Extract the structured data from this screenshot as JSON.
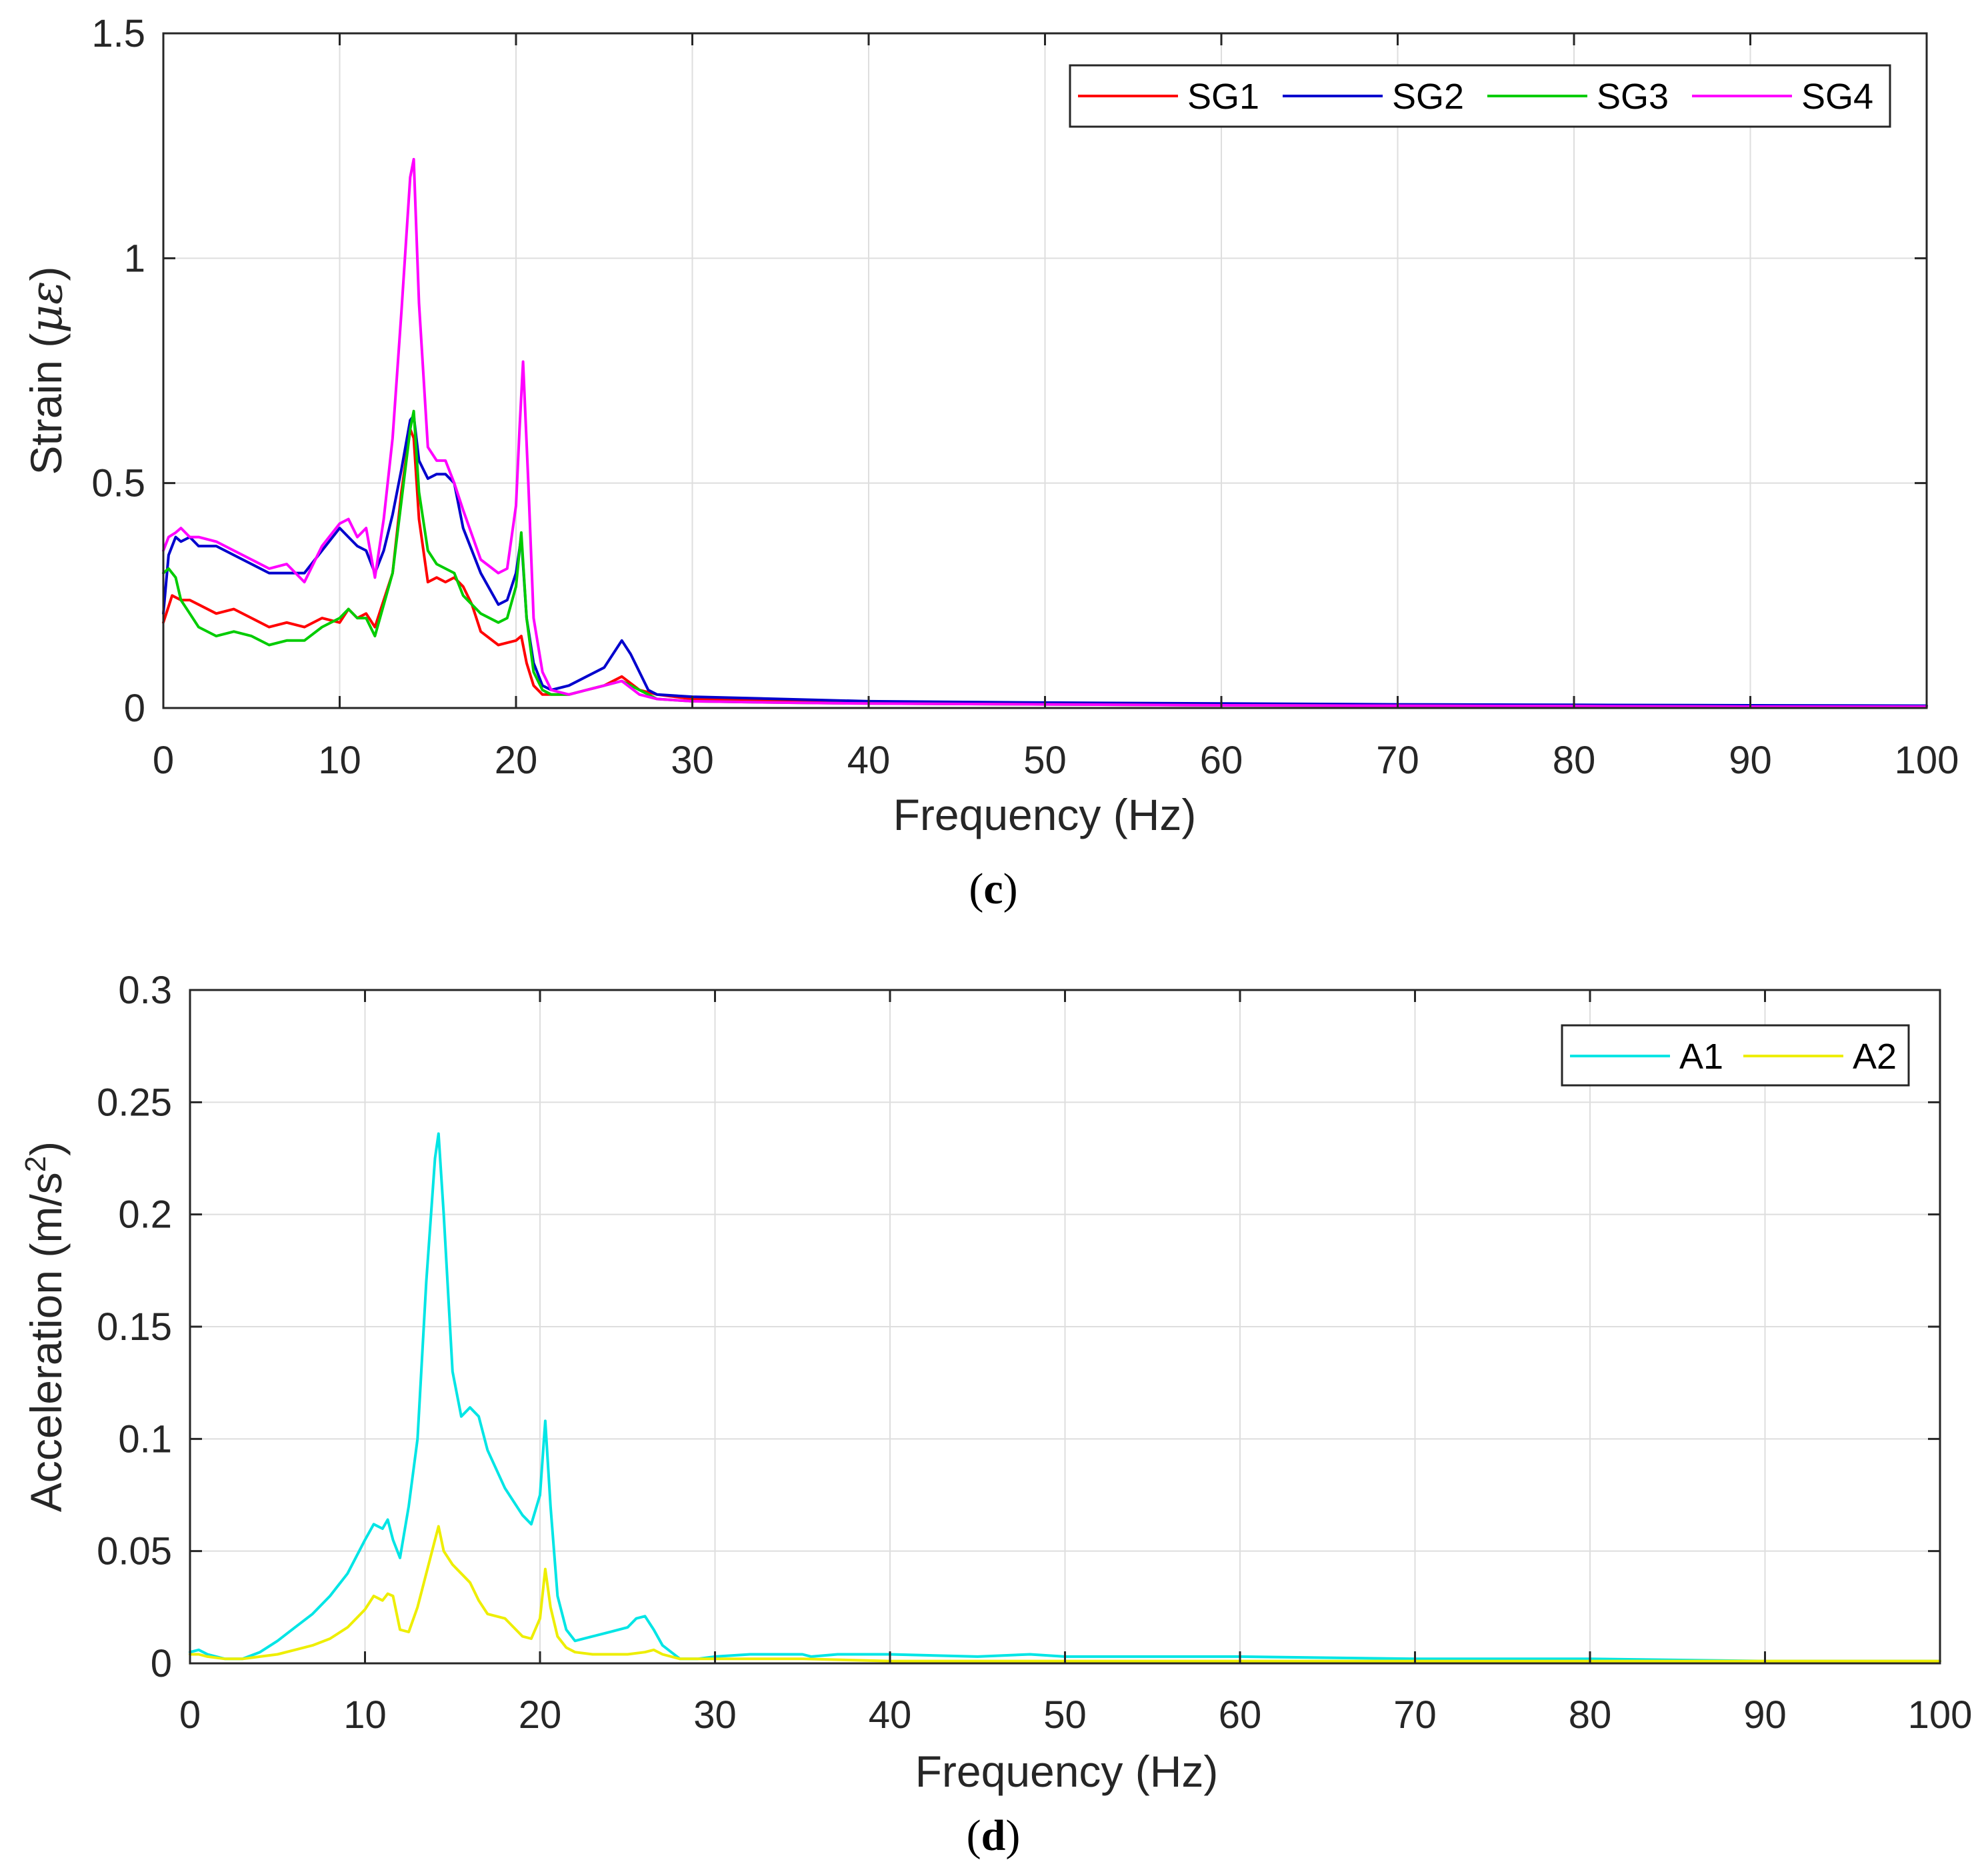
{
  "chart_data": [
    {
      "type": "line",
      "panel_label": "c",
      "xlabel": "Frequency (Hz)",
      "ylabel_prefix": "Strain (",
      "ylabel_unit": "με",
      "ylabel_suffix": ")",
      "xlim": [
        0,
        100
      ],
      "ylim": [
        0,
        1.5
      ],
      "xticks": [
        0,
        10,
        20,
        30,
        40,
        50,
        60,
        70,
        80,
        90,
        100
      ],
      "yticks": [
        0,
        0.5,
        1,
        1.5
      ],
      "ytick_labels": [
        "0",
        "0.5",
        "1",
        "1.5"
      ],
      "grid": true,
      "legend_position": "top-right",
      "series": [
        {
          "name": "SG1",
          "color": "#ff0000",
          "x": [
            0,
            0.5,
            1,
            1.5,
            2,
            3,
            4,
            5,
            6,
            7,
            8,
            9,
            10,
            10.5,
            11,
            11.5,
            12,
            13,
            13.5,
            14,
            14.2,
            14.5,
            15,
            15.5,
            16,
            16.5,
            17,
            17.5,
            18,
            19,
            20,
            20.3,
            20.6,
            21,
            21.5,
            22,
            23,
            24,
            25,
            26,
            27,
            28,
            30,
            35,
            40,
            50,
            60,
            70,
            80,
            90,
            100
          ],
          "y": [
            0.19,
            0.25,
            0.24,
            0.24,
            0.23,
            0.21,
            0.22,
            0.2,
            0.18,
            0.19,
            0.18,
            0.2,
            0.19,
            0.22,
            0.2,
            0.21,
            0.18,
            0.3,
            0.48,
            0.62,
            0.6,
            0.42,
            0.28,
            0.29,
            0.28,
            0.29,
            0.27,
            0.23,
            0.17,
            0.14,
            0.15,
            0.16,
            0.1,
            0.05,
            0.03,
            0.03,
            0.03,
            0.04,
            0.05,
            0.07,
            0.04,
            0.03,
            0.02,
            0.015,
            0.012,
            0.01,
            0.008,
            0.006,
            0.005,
            0.004,
            0.003
          ]
        },
        {
          "name": "SG2",
          "color": "#0000cd",
          "x": [
            0,
            0.3,
            0.7,
            1,
            1.5,
            2,
            3,
            4,
            5,
            6,
            7,
            8,
            9,
            10,
            10.5,
            11,
            11.5,
            12,
            12.5,
            13,
            13.5,
            14,
            14.2,
            14.5,
            15,
            15.5,
            16,
            16.5,
            17,
            18,
            19,
            19.5,
            20,
            20.3,
            20.6,
            21,
            21.5,
            22,
            23,
            24,
            25,
            26,
            26.5,
            27,
            27.5,
            28,
            30,
            35,
            40,
            50,
            60,
            70,
            80,
            90,
            100
          ],
          "y": [
            0.21,
            0.34,
            0.38,
            0.37,
            0.38,
            0.36,
            0.36,
            0.34,
            0.32,
            0.3,
            0.3,
            0.3,
            0.35,
            0.4,
            0.38,
            0.36,
            0.35,
            0.3,
            0.35,
            0.43,
            0.53,
            0.64,
            0.65,
            0.55,
            0.51,
            0.52,
            0.52,
            0.5,
            0.4,
            0.3,
            0.23,
            0.24,
            0.3,
            0.38,
            0.2,
            0.1,
            0.05,
            0.04,
            0.05,
            0.07,
            0.09,
            0.15,
            0.12,
            0.08,
            0.04,
            0.03,
            0.025,
            0.02,
            0.015,
            0.012,
            0.01,
            0.008,
            0.007,
            0.006,
            0.005
          ]
        },
        {
          "name": "SG3",
          "color": "#00cc00",
          "x": [
            0,
            0.3,
            0.7,
            1,
            1.5,
            2,
            3,
            4,
            5,
            6,
            7,
            8,
            9,
            10,
            10.5,
            11,
            11.5,
            12,
            13,
            13.5,
            14,
            14.2,
            14.5,
            15,
            15.5,
            16,
            16.5,
            17,
            18,
            19,
            19.5,
            20,
            20.3,
            20.6,
            21,
            21.5,
            22,
            23,
            24,
            25,
            26,
            27,
            28,
            30,
            35,
            40,
            50,
            60,
            70,
            80,
            90,
            100
          ],
          "y": [
            0.3,
            0.31,
            0.29,
            0.24,
            0.21,
            0.18,
            0.16,
            0.17,
            0.16,
            0.14,
            0.15,
            0.15,
            0.18,
            0.2,
            0.22,
            0.2,
            0.2,
            0.16,
            0.3,
            0.46,
            0.62,
            0.66,
            0.48,
            0.35,
            0.32,
            0.31,
            0.3,
            0.25,
            0.21,
            0.19,
            0.2,
            0.27,
            0.39,
            0.2,
            0.08,
            0.04,
            0.03,
            0.03,
            0.04,
            0.05,
            0.06,
            0.04,
            0.02,
            0.015,
            0.012,
            0.01,
            0.008,
            0.006,
            0.005,
            0.004,
            0.003,
            0.003
          ]
        },
        {
          "name": "SG4",
          "color": "#ff00ff",
          "x": [
            0,
            0.3,
            0.7,
            1,
            1.5,
            2,
            3,
            4,
            5,
            6,
            7,
            8,
            9,
            10,
            10.5,
            11,
            11.5,
            12,
            12.5,
            13,
            13.5,
            14,
            14.2,
            14.5,
            15,
            15.5,
            16,
            16.5,
            17,
            18,
            19,
            19.5,
            20,
            20.2,
            20.4,
            20.7,
            21,
            21.5,
            22,
            23,
            24,
            25,
            26,
            27,
            28,
            30,
            35,
            40,
            50,
            60,
            70,
            80,
            90,
            100
          ],
          "y": [
            0.35,
            0.38,
            0.39,
            0.4,
            0.38,
            0.38,
            0.37,
            0.35,
            0.33,
            0.31,
            0.32,
            0.28,
            0.36,
            0.41,
            0.42,
            0.38,
            0.4,
            0.29,
            0.42,
            0.6,
            0.88,
            1.18,
            1.22,
            0.9,
            0.58,
            0.55,
            0.55,
            0.5,
            0.44,
            0.33,
            0.3,
            0.31,
            0.45,
            0.62,
            0.77,
            0.5,
            0.2,
            0.08,
            0.04,
            0.03,
            0.04,
            0.05,
            0.06,
            0.03,
            0.02,
            0.015,
            0.012,
            0.01,
            0.008,
            0.006,
            0.005,
            0.004,
            0.003,
            0.003
          ]
        }
      ]
    },
    {
      "type": "line",
      "panel_label": "d",
      "xlabel": "Frequency (Hz)",
      "ylabel_prefix": "Acceleration (m/s",
      "ylabel_sup": "2",
      "ylabel_suffix": ")",
      "xlim": [
        0,
        100
      ],
      "ylim": [
        0,
        0.3
      ],
      "xticks": [
        0,
        10,
        20,
        30,
        40,
        50,
        60,
        70,
        80,
        90,
        100
      ],
      "yticks": [
        0,
        0.05,
        0.1,
        0.15,
        0.2,
        0.25,
        0.3
      ],
      "ytick_labels": [
        "0",
        "0.05",
        "0.1",
        "0.15",
        "0.2",
        "0.25",
        "0.3"
      ],
      "grid": true,
      "legend_position": "top-right",
      "series": [
        {
          "name": "A1",
          "color": "#00e5e5",
          "x": [
            0,
            0.5,
            1,
            2,
            3,
            4,
            5,
            6,
            7,
            8,
            9,
            10,
            10.5,
            11,
            11.3,
            11.6,
            12,
            12.5,
            13,
            13.5,
            14,
            14.2,
            14.5,
            15,
            15.5,
            16,
            16.5,
            17,
            18,
            19,
            19.5,
            20,
            20.3,
            20.6,
            21,
            21.5,
            22,
            23,
            24,
            25,
            25.5,
            26,
            26.5,
            27,
            28,
            29,
            30,
            32,
            35,
            35.5,
            37,
            40,
            45,
            48,
            50,
            55,
            60,
            70,
            80,
            90,
            100
          ],
          "y": [
            0.005,
            0.006,
            0.004,
            0.002,
            0.002,
            0.005,
            0.01,
            0.016,
            0.022,
            0.03,
            0.04,
            0.055,
            0.062,
            0.06,
            0.064,
            0.055,
            0.047,
            0.07,
            0.1,
            0.17,
            0.225,
            0.236,
            0.2,
            0.13,
            0.11,
            0.114,
            0.11,
            0.095,
            0.078,
            0.066,
            0.062,
            0.075,
            0.108,
            0.07,
            0.03,
            0.015,
            0.01,
            0.012,
            0.014,
            0.016,
            0.02,
            0.021,
            0.015,
            0.008,
            0.002,
            0.002,
            0.003,
            0.004,
            0.004,
            0.003,
            0.004,
            0.004,
            0.003,
            0.004,
            0.003,
            0.003,
            0.003,
            0.002,
            0.002,
            0.001,
            0.001
          ]
        },
        {
          "name": "A2",
          "color": "#eeee00",
          "x": [
            0,
            0.5,
            1,
            2,
            3,
            4,
            5,
            6,
            7,
            8,
            9,
            10,
            10.5,
            11,
            11.3,
            11.6,
            12,
            12.5,
            13,
            13.5,
            14,
            14.2,
            14.5,
            15,
            15.5,
            16,
            16.5,
            17,
            18,
            19,
            19.5,
            20,
            20.3,
            20.6,
            21,
            21.5,
            22,
            23,
            24,
            25,
            26,
            26.5,
            27,
            28,
            30,
            35,
            40,
            50,
            60,
            70,
            80,
            90,
            100
          ],
          "y": [
            0.004,
            0.004,
            0.003,
            0.002,
            0.002,
            0.003,
            0.004,
            0.006,
            0.008,
            0.011,
            0.016,
            0.024,
            0.03,
            0.028,
            0.031,
            0.03,
            0.015,
            0.014,
            0.025,
            0.04,
            0.055,
            0.061,
            0.05,
            0.044,
            0.04,
            0.036,
            0.028,
            0.022,
            0.02,
            0.012,
            0.011,
            0.02,
            0.042,
            0.025,
            0.012,
            0.007,
            0.005,
            0.004,
            0.004,
            0.004,
            0.005,
            0.006,
            0.004,
            0.002,
            0.002,
            0.002,
            0.001,
            0.001,
            0.001,
            0.001,
            0.001,
            0.001,
            0.001
          ]
        }
      ]
    }
  ]
}
